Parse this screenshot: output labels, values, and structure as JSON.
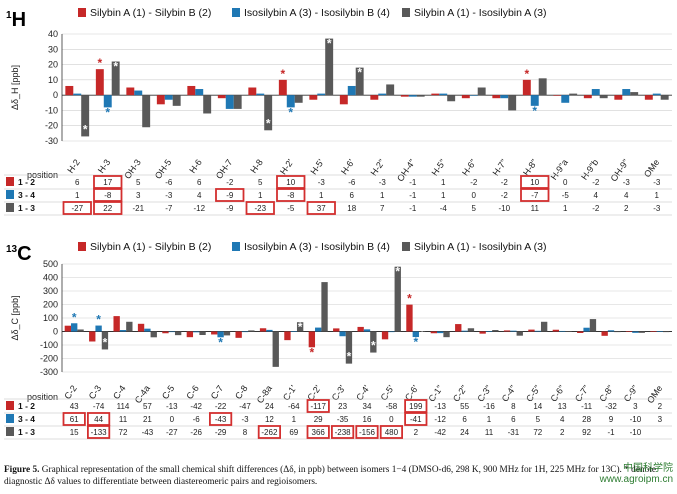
{
  "colors": {
    "red": "#c62828",
    "blue": "#1f78b4",
    "grey": "#595959",
    "star_red": "#b71c1c",
    "star_blue": "#1565c0",
    "highlight": "#d32f2f"
  },
  "legend": [
    {
      "label": "Silybin A (1) - Silybin B (2)",
      "color": "red"
    },
    {
      "label": "Isosilybin A (3) - Isosilybin B (4)",
      "color": "blue"
    },
    {
      "label": "Silybin A (1) - Isosilybin A (3)",
      "color": "grey"
    }
  ],
  "position_label": "position",
  "chart_data": [
    {
      "type": "bar",
      "nucleus_label": "1H",
      "nucleus_sup": "1",
      "nucleus_main": "H",
      "ylabel": "Δδ_H [ppb]",
      "ylim": [
        -30,
        40
      ],
      "yticks": [
        -30,
        -20,
        -10,
        0,
        10,
        20,
        30,
        40
      ],
      "grid": true,
      "categories": [
        "H-2",
        "H-3",
        "OH-3",
        "OH-5",
        "H-6",
        "OH-7",
        "H-8",
        "H-2'",
        "H-5'",
        "H-6'",
        "H-2\"",
        "OH-4\"",
        "H-5\"",
        "H-6\"",
        "H-7\"",
        "H-8\"",
        "H-9\"a",
        "H-9\"b",
        "OH-9\"",
        "OMe"
      ],
      "series": [
        {
          "name": "1 - 2",
          "values": [
            6,
            17,
            5,
            -6,
            6,
            -2,
            5,
            10,
            -3,
            -6,
            -3,
            -1,
            1,
            -2,
            -2,
            10,
            0,
            -2,
            -3,
            -3
          ]
        },
        {
          "name": "3 - 4",
          "values": [
            1,
            -8,
            3,
            -3,
            4,
            -9,
            1,
            -8,
            1,
            6,
            1,
            -1,
            1,
            0,
            -2,
            -7,
            -5,
            4,
            4,
            1
          ]
        },
        {
          "name": "1 - 3",
          "values": [
            -27,
            22,
            -21,
            -7,
            -12,
            -9,
            -23,
            -5,
            37,
            18,
            7,
            -1,
            -4,
            5,
            -10,
            11,
            1,
            -2,
            2,
            -3
          ]
        }
      ],
      "display": [
        [
          "6",
          "17",
          "5",
          "-6",
          "6",
          "-2",
          "5",
          "10",
          "-3",
          "-6",
          "-3",
          "-1",
          "1",
          "-2",
          "-2",
          "10",
          "0",
          "-2",
          "-3",
          "-3"
        ],
        [
          "1",
          "-8",
          "3",
          "-3",
          "4",
          "-9",
          "1",
          "-8",
          "1",
          "6",
          "1",
          "-1",
          "1",
          "0",
          "-2",
          "-7",
          "-5",
          "4",
          "4",
          "1"
        ],
        [
          "-27",
          "22",
          "-21",
          "-7",
          "-12",
          "-9",
          "-23",
          "-5",
          "37",
          "18",
          "7",
          "-1",
          "-4",
          "5",
          "-10",
          "11",
          "1",
          "-2",
          "2",
          "-3"
        ]
      ],
      "highlights": [
        [
          0,
          1
        ],
        [
          0,
          7
        ],
        [
          0,
          15
        ],
        [
          1,
          1
        ],
        [
          1,
          5
        ],
        [
          1,
          7
        ],
        [
          1,
          15
        ],
        [
          2,
          0
        ],
        [
          2,
          1
        ],
        [
          2,
          6
        ],
        [
          2,
          8
        ]
      ],
      "stars": [
        {
          "series": 0,
          "index": 1,
          "color": "red"
        },
        {
          "series": 0,
          "index": 7,
          "color": "red"
        },
        {
          "series": 0,
          "index": 15,
          "color": "red"
        },
        {
          "series": 1,
          "index": 1,
          "color": "blue"
        },
        {
          "series": 1,
          "index": 7,
          "color": "blue"
        },
        {
          "series": 1,
          "index": 15,
          "color": "blue"
        },
        {
          "series": 2,
          "index": 0,
          "color": "white"
        },
        {
          "series": 2,
          "index": 1,
          "color": "white"
        },
        {
          "series": 2,
          "index": 6,
          "color": "white"
        },
        {
          "series": 2,
          "index": 8,
          "color": "white"
        },
        {
          "series": 2,
          "index": 9,
          "color": "white"
        }
      ],
      "row_labels": [
        "1 - 2",
        "3 - 4",
        "1 - 3"
      ]
    },
    {
      "type": "bar",
      "nucleus_label": "13C",
      "nucleus_sup": "13",
      "nucleus_main": "C",
      "ylabel": "Δδ_C [ppb]",
      "ylim": [
        -300,
        500
      ],
      "yticks": [
        -300,
        -200,
        -100,
        0,
        100,
        200,
        300,
        400,
        500
      ],
      "grid": true,
      "categories": [
        "C-2",
        "C-3",
        "C-4",
        "C-4a",
        "C-5",
        "C-6",
        "C-7",
        "C-8",
        "C-8a",
        "C-1'",
        "C-2'",
        "C-3'",
        "C-4'",
        "C-5'",
        "C-6'",
        "C-1\"",
        "C-2\"",
        "C-3\"",
        "C-4\"",
        "C-5\"",
        "C-6\"",
        "C-7\"",
        "C-8\"",
        "C-9\"",
        "OMe"
      ],
      "series": [
        {
          "name": "1 - 2",
          "values": [
            43,
            -74,
            114,
            57,
            -13,
            -42,
            -22,
            -47,
            24,
            -64,
            -117,
            23,
            34,
            -58,
            199,
            -13,
            55,
            -16,
            8,
            14,
            13,
            -11,
            -32,
            3,
            2
          ]
        },
        {
          "name": "3 - 4",
          "values": [
            61,
            44,
            11,
            21,
            0,
            -6,
            -43,
            -3,
            12,
            1,
            29,
            -35,
            16,
            0,
            -41,
            -12,
            6,
            1,
            6,
            5,
            4,
            28,
            9,
            -10,
            3
          ]
        },
        {
          "name": "1 - 3",
          "values": [
            15,
            -133,
            72,
            -43,
            -27,
            -26,
            -29,
            8,
            -262,
            69,
            366,
            -238,
            -156,
            480,
            2,
            -42,
            24,
            11,
            -31,
            72,
            2,
            92,
            -1,
            -10,
            0
          ]
        }
      ],
      "display": [
        [
          "43",
          "-74",
          "114",
          "57",
          "-13",
          "-42",
          "-22",
          "-47",
          "24",
          "-64",
          "-117",
          "23",
          "34",
          "-58",
          "199",
          "-13",
          "55",
          "-16",
          "8",
          "14",
          "13",
          "-11",
          "-32",
          "3",
          "2"
        ],
        [
          "61",
          "44",
          "11",
          "21",
          "0",
          "-6",
          "-43",
          "-3",
          "12",
          "1",
          "29",
          "-35",
          "16",
          "0",
          "-41",
          "-12",
          "6",
          "1",
          "6",
          "5",
          "4",
          "28",
          "9",
          "-10",
          "3"
        ],
        [
          "15",
          "-133",
          "72",
          "-43",
          "-27",
          "-26",
          "-29",
          "8",
          "-262",
          "69",
          "366",
          "-238",
          "-156",
          "480",
          "2",
          "-42",
          "24",
          "11",
          "-31",
          "72",
          "2",
          "92",
          "-1",
          "-10",
          ""
        ]
      ],
      "highlights": [
        [
          0,
          10
        ],
        [
          0,
          14
        ],
        [
          1,
          0
        ],
        [
          1,
          1
        ],
        [
          1,
          6
        ],
        [
          1,
          14
        ],
        [
          2,
          1
        ],
        [
          2,
          8
        ],
        [
          2,
          10
        ],
        [
          2,
          11
        ],
        [
          2,
          12
        ],
        [
          2,
          13
        ]
      ],
      "stars": [
        {
          "series": 0,
          "index": 10,
          "color": "red"
        },
        {
          "series": 0,
          "index": 14,
          "color": "red"
        },
        {
          "series": 1,
          "index": 0,
          "color": "blue"
        },
        {
          "series": 1,
          "index": 1,
          "color": "blue"
        },
        {
          "series": 1,
          "index": 6,
          "color": "blue"
        },
        {
          "series": 1,
          "index": 14,
          "color": "blue"
        },
        {
          "series": 2,
          "index": 1,
          "color": "white"
        },
        {
          "series": 2,
          "index": 9,
          "color": "white"
        },
        {
          "series": 2,
          "index": 11,
          "color": "white"
        },
        {
          "series": 2,
          "index": 12,
          "color": "white"
        },
        {
          "series": 2,
          "index": 13,
          "color": "white"
        },
        {
          "series": 2,
          "index": 14,
          "color": "white"
        }
      ],
      "row_labels": [
        "1 - 2",
        "3 - 4",
        "1 - 3"
      ]
    }
  ],
  "caption": {
    "label": "Figure 5.",
    "text": "Graphical representation of the small chemical shift differences (Δδ, in ppb) between isomers 1−4 (DMSO-d6, 298 K, 900 MHz for 1H, 225 MHz for 13C). * denote diagnostic Δδ values to differentiate between diastereomeric pairs and regioisomers."
  },
  "watermark": {
    "line1": "中国科学院",
    "line2": "www.agroipm.cn"
  }
}
